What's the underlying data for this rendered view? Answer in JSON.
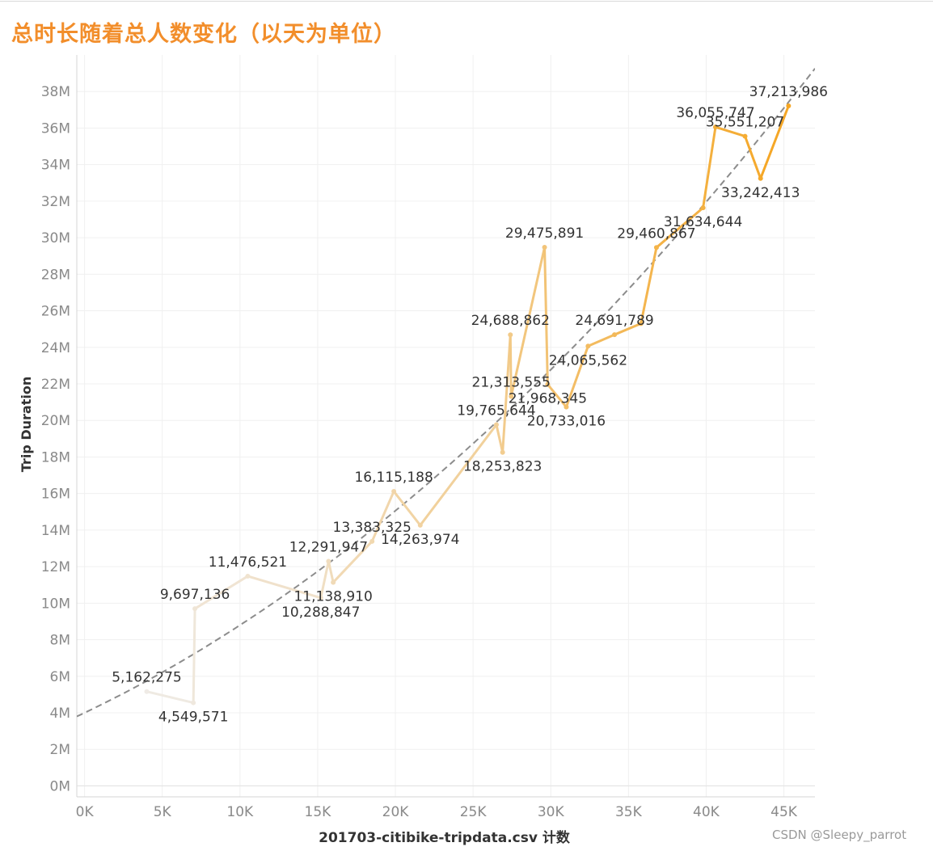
{
  "chart_data": {
    "type": "line",
    "title": "总时长随着总人数变化（以天为单位）",
    "xlabel": "201703-citibike-tripdata.csv 计数",
    "ylabel": "Trip Duration",
    "xlim": [
      -500,
      47000
    ],
    "ylim": [
      -600000,
      40000000
    ],
    "x_ticks": [
      0,
      5000,
      10000,
      15000,
      20000,
      25000,
      30000,
      35000,
      40000,
      45000
    ],
    "x_tick_labels": [
      "0K",
      "5K",
      "10K",
      "15K",
      "20K",
      "25K",
      "30K",
      "35K",
      "40K",
      "45K"
    ],
    "y_ticks": [
      0,
      2000000,
      4000000,
      6000000,
      8000000,
      10000000,
      12000000,
      14000000,
      16000000,
      18000000,
      20000000,
      22000000,
      24000000,
      26000000,
      28000000,
      30000000,
      32000000,
      34000000,
      36000000,
      38000000
    ],
    "y_tick_labels": [
      "0M",
      "2M",
      "4M",
      "6M",
      "8M",
      "10M",
      "12M",
      "14M",
      "16M",
      "18M",
      "20M",
      "22M",
      "24M",
      "26M",
      "28M",
      "30M",
      "32M",
      "34M",
      "36M",
      "38M"
    ],
    "grid": true,
    "legend": "none",
    "colors": {
      "start": "#efebe6",
      "end": "#f5a623",
      "trend": "#8c8c8c",
      "title": "#f28e2b"
    },
    "trend": {
      "type": "polynomial",
      "coefficients": [
        4000000,
        406.47,
        0.007313
      ]
    },
    "points": [
      {
        "x": 4000,
        "y": 5162275,
        "label": "5,162,275",
        "pos": "above"
      },
      {
        "x": 7000,
        "y": 4549571,
        "label": "4,549,571",
        "pos": "below"
      },
      {
        "x": 7100,
        "y": 9697136,
        "label": "9,697,136",
        "pos": "above"
      },
      {
        "x": 10500,
        "y": 11476521,
        "label": "11,476,521",
        "pos": "above"
      },
      {
        "x": 15200,
        "y": 10288847,
        "label": "10,288,847",
        "pos": "below"
      },
      {
        "x": 15700,
        "y": 12291947,
        "label": "12,291,947",
        "pos": "above"
      },
      {
        "x": 16000,
        "y": 11138910,
        "label": "11,138,910",
        "pos": "below"
      },
      {
        "x": 18500,
        "y": 13383325,
        "label": "13,383,325",
        "pos": "above"
      },
      {
        "x": 19900,
        "y": 16115188,
        "label": "16,115,188",
        "pos": "above"
      },
      {
        "x": 21600,
        "y": 14263974,
        "label": "14,263,974",
        "pos": "below"
      },
      {
        "x": 26500,
        "y": 19765644,
        "label": "19,765,644",
        "pos": "above"
      },
      {
        "x": 26900,
        "y": 18253823,
        "label": "18,253,823",
        "pos": "below"
      },
      {
        "x": 27400,
        "y": 24688862,
        "label": "24,688,862",
        "pos": "above"
      },
      {
        "x": 27450,
        "y": 21313555,
        "label": "21,313,555",
        "pos": "above"
      },
      {
        "x": 29600,
        "y": 29475891,
        "label": "29,475,891",
        "pos": "above"
      },
      {
        "x": 29800,
        "y": 21968345,
        "label": "21,968,345",
        "pos": "below"
      },
      {
        "x": 31000,
        "y": 20733016,
        "label": "20,733,016",
        "pos": "below"
      },
      {
        "x": 32400,
        "y": 24065562,
        "label": "24,065,562",
        "pos": "below"
      },
      {
        "x": 34100,
        "y": 24691789,
        "label": "24,691,789",
        "pos": "above"
      },
      {
        "x": 35800,
        "y": 25300000,
        "label": "",
        "pos": "none"
      },
      {
        "x": 36800,
        "y": 29460867,
        "label": "29,460,867",
        "pos": "above"
      },
      {
        "x": 39800,
        "y": 31634644,
        "label": "31,634,644",
        "pos": "below"
      },
      {
        "x": 40600,
        "y": 36055747,
        "label": "36,055,747",
        "pos": "above"
      },
      {
        "x": 42500,
        "y": 35551207,
        "label": "35,551,207",
        "pos": "above"
      },
      {
        "x": 43500,
        "y": 33242413,
        "label": "33,242,413",
        "pos": "below"
      },
      {
        "x": 45300,
        "y": 37213986,
        "label": "37,213,986",
        "pos": "above"
      }
    ]
  },
  "watermark": "CSDN @Sleepy_parrot"
}
